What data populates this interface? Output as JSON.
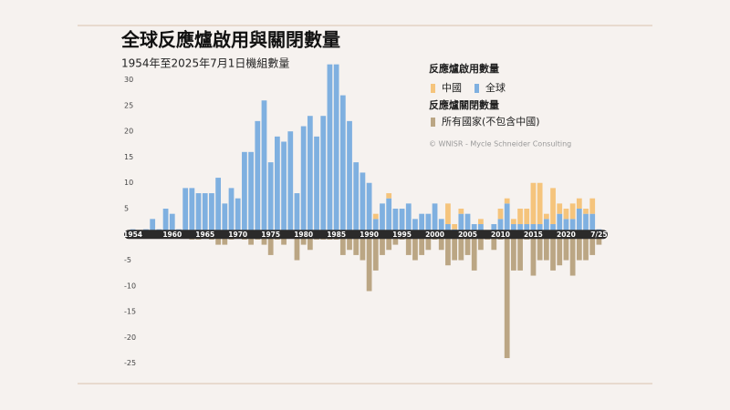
{
  "chart_data": {
    "type": "bar",
    "title": "全球反應爐啟用與關閉數量",
    "subtitle": "1954年至2025年7月1日機組數量",
    "legend_groups": [
      "反應爐啟用數量",
      "反應爐關閉數量"
    ],
    "credit": "© WNISR - Mycle Schneider Consulting",
    "x": [
      1954,
      1955,
      1956,
      1957,
      1958,
      1959,
      1960,
      1961,
      1962,
      1963,
      1964,
      1965,
      1966,
      1967,
      1968,
      1969,
      1970,
      1971,
      1972,
      1973,
      1974,
      1975,
      1976,
      1977,
      1978,
      1979,
      1980,
      1981,
      1982,
      1983,
      1984,
      1985,
      1986,
      1987,
      1988,
      1989,
      1990,
      1991,
      1992,
      1993,
      1994,
      1995,
      1996,
      1997,
      1998,
      1999,
      2000,
      2001,
      2002,
      2003,
      2004,
      2005,
      2006,
      2007,
      2008,
      2009,
      2010,
      2011,
      2012,
      2013,
      2014,
      2015,
      2016,
      2017,
      2018,
      2019,
      2020,
      2021,
      2022,
      2023,
      2024,
      2025
    ],
    "series": [
      {
        "name": "全球",
        "color": "#7fb0e0",
        "stack": "up",
        "values": [
          1,
          0,
          1,
          3,
          1,
          5,
          4,
          1,
          9,
          9,
          8,
          8,
          8,
          11,
          6,
          9,
          7,
          16,
          16,
          22,
          26,
          14,
          19,
          18,
          20,
          8,
          21,
          23,
          19,
          23,
          33,
          33,
          27,
          22,
          14,
          12,
          10,
          3,
          6,
          7,
          5,
          5,
          6,
          3,
          4,
          4,
          6,
          3,
          2,
          1,
          4,
          4,
          2,
          2,
          0,
          2,
          3,
          6,
          2,
          2,
          2,
          2,
          2,
          3,
          2,
          4,
          3,
          3,
          5,
          4,
          4,
          1
        ]
      },
      {
        "name": "中國",
        "color": "#f5c47c",
        "stack": "up",
        "values": [
          0,
          0,
          0,
          0,
          0,
          0,
          0,
          0,
          0,
          0,
          0,
          0,
          0,
          0,
          0,
          0,
          0,
          0,
          0,
          0,
          0,
          0,
          0,
          0,
          0,
          0,
          0,
          0,
          0,
          0,
          0,
          0,
          0,
          0,
          0,
          0,
          0,
          1,
          0,
          1,
          0,
          0,
          0,
          0,
          0,
          0,
          0,
          0,
          4,
          1,
          1,
          0,
          0,
          1,
          0,
          0,
          2,
          1,
          1,
          3,
          3,
          8,
          8,
          1,
          7,
          2,
          2,
          3,
          2,
          1,
          3,
          0
        ]
      },
      {
        "name": "所有國家(不包含中國)",
        "color": "#bba684",
        "stack": "down",
        "values": [
          0,
          0,
          0,
          0,
          0,
          0,
          0,
          0,
          0,
          -1,
          -1,
          0,
          -1,
          -2,
          -2,
          -1,
          0,
          -1,
          -2,
          -1,
          -2,
          -4,
          -1,
          -2,
          0,
          -5,
          -2,
          -3,
          -1,
          -1,
          -1,
          -1,
          -4,
          -3,
          -4,
          -5,
          -11,
          -7,
          -4,
          -3,
          -2,
          -1,
          -4,
          -5,
          -4,
          -3,
          -1,
          -3,
          -6,
          -5,
          -5,
          -4,
          -7,
          -3,
          -1,
          -3,
          -1,
          -24,
          -7,
          -7,
          -1,
          -8,
          -5,
          -5,
          -7,
          -6,
          -5,
          -8,
          -5,
          -5,
          -4,
          -2
        ]
      }
    ],
    "xlim": [
      1953.5,
      2025.5
    ],
    "xticks": [
      1954,
      1960,
      1965,
      1970,
      1975,
      1980,
      1985,
      1990,
      1995,
      2000,
      2005,
      2010,
      2015,
      2020,
      {
        "value": 2025,
        "label": "7/25"
      }
    ],
    "ylim": [
      -27,
      34
    ],
    "yticks": [
      -25,
      -20,
      -15,
      -10,
      -5,
      5,
      10,
      15,
      20,
      25,
      30
    ]
  }
}
